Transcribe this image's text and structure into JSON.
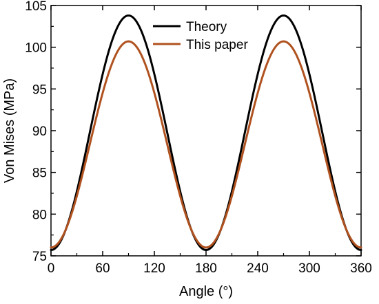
{
  "chart_data": {
    "type": "line",
    "title": "",
    "xlabel": "Angle (°)",
    "ylabel": "Von Mises (MPa)",
    "xlim": [
      0,
      360
    ],
    "ylim": [
      75,
      105
    ],
    "xticks": [
      0,
      60,
      120,
      180,
      240,
      300,
      360
    ],
    "yticks": [
      75,
      80,
      85,
      90,
      95,
      100,
      105
    ],
    "grid": false,
    "legend_position": "top-center",
    "x": [
      0,
      10,
      20,
      30,
      40,
      50,
      60,
      70,
      80,
      90,
      100,
      110,
      120,
      130,
      140,
      150,
      160,
      170,
      180,
      190,
      200,
      210,
      220,
      230,
      240,
      250,
      260,
      270,
      280,
      290,
      300,
      310,
      320,
      330,
      340,
      350,
      360
    ],
    "series": [
      {
        "name": "Theory",
        "color": "#000000",
        "values": [
          75.7,
          76.5,
          79.0,
          82.8,
          87.5,
          92.5,
          97.3,
          101.1,
          103.1,
          103.8,
          103.1,
          101.1,
          97.3,
          92.5,
          87.5,
          82.8,
          79.0,
          76.5,
          75.7,
          76.5,
          79.0,
          82.8,
          87.5,
          92.5,
          97.3,
          101.1,
          103.1,
          103.8,
          103.1,
          101.1,
          97.3,
          92.5,
          87.5,
          82.8,
          79.0,
          76.5,
          75.7
        ]
      },
      {
        "name": "This paper",
        "color": "#b0521f",
        "values": [
          76.0,
          76.8,
          79.2,
          82.8,
          87.1,
          91.8,
          96.0,
          99.0,
          100.3,
          100.7,
          100.3,
          99.0,
          96.0,
          91.8,
          87.1,
          82.8,
          79.2,
          76.8,
          76.0,
          76.8,
          79.2,
          82.8,
          87.1,
          91.8,
          96.0,
          99.0,
          100.3,
          100.7,
          100.3,
          99.0,
          96.0,
          91.8,
          87.1,
          82.8,
          79.2,
          76.8,
          76.0
        ]
      }
    ]
  }
}
